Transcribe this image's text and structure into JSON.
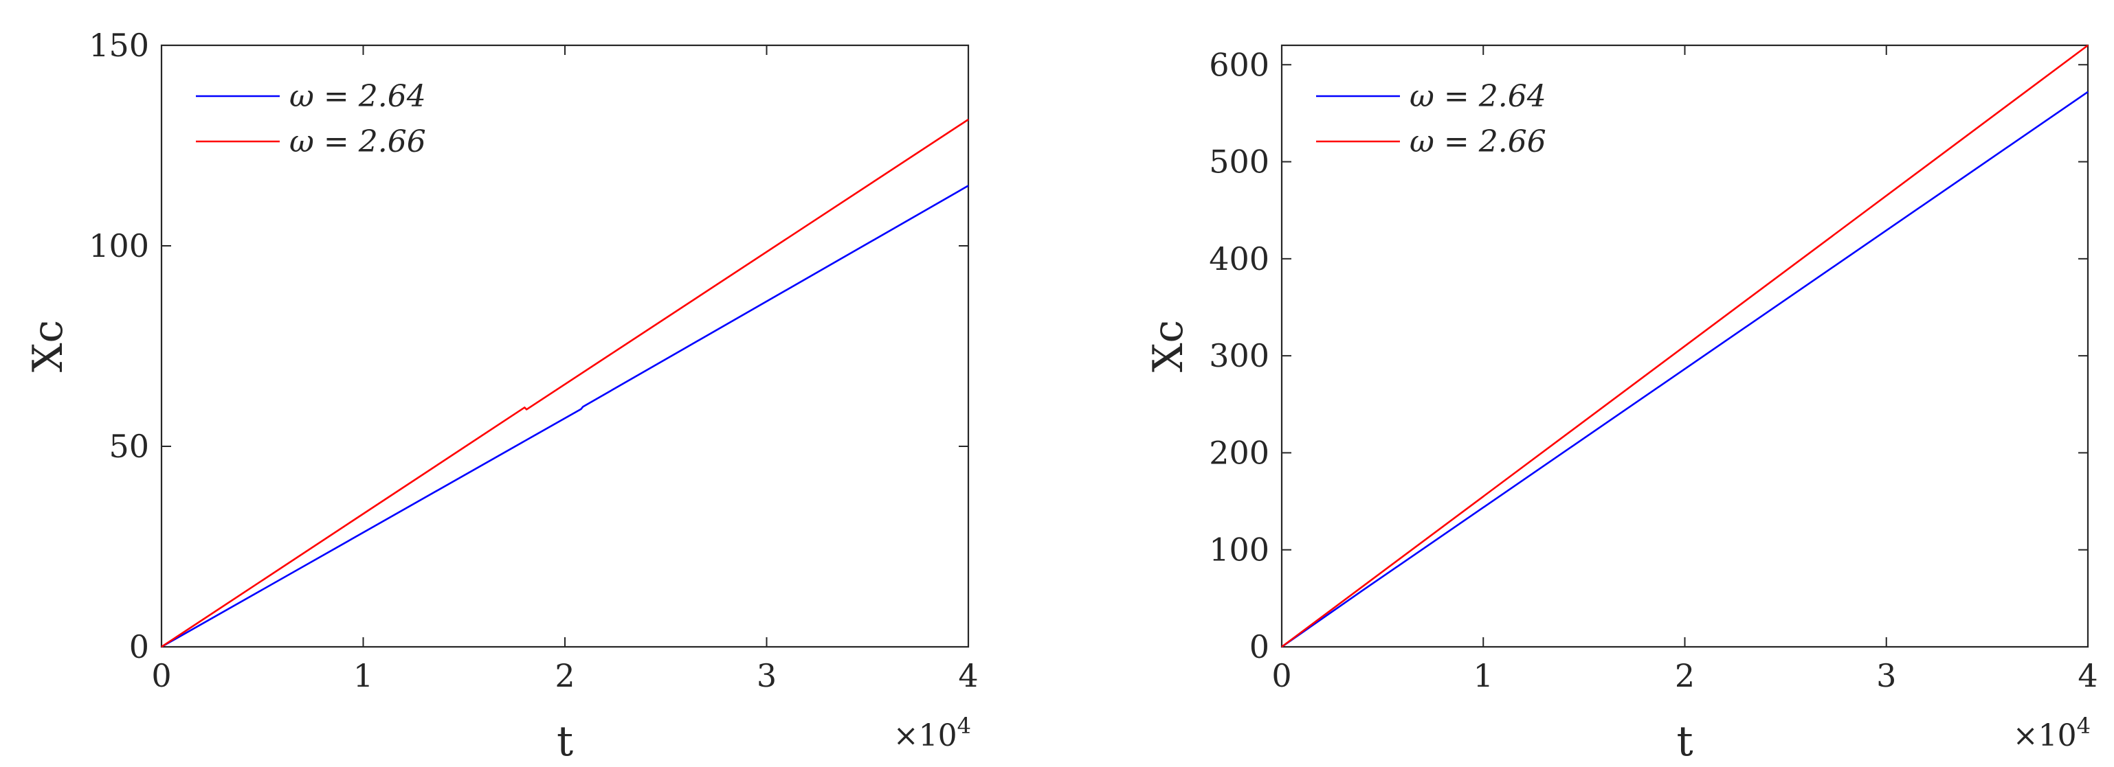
{
  "chart_data": [
    {
      "type": "line",
      "xlabel": "t",
      "ylabel": "Xc",
      "x_exponent_label": "×10",
      "x_exponent_power": "4",
      "xlim": [
        0,
        40000
      ],
      "ylim": [
        0,
        150
      ],
      "xticks": [
        0,
        10000,
        20000,
        30000,
        40000
      ],
      "xtick_labels": [
        "0",
        "1",
        "2",
        "3",
        "4"
      ],
      "yticks": [
        0,
        50,
        100,
        150
      ],
      "ytick_labels": [
        "0",
        "50",
        "100",
        "150"
      ],
      "legend_placement": "top-left",
      "grid": false,
      "series": [
        {
          "name": "ω = 2.64",
          "color": "#0000ff",
          "points": [
            [
              0,
              0
            ],
            [
              20800,
              59.3
            ],
            [
              20900,
              59.9
            ],
            [
              40000,
              115
            ]
          ]
        },
        {
          "name": "ω = 2.66",
          "color": "#ff0000",
          "points": [
            [
              0,
              0
            ],
            [
              18000,
              59.7
            ],
            [
              18100,
              59.2
            ],
            [
              40000,
              131.5
            ]
          ]
        }
      ]
    },
    {
      "type": "line",
      "xlabel": "t",
      "ylabel": "Xc",
      "x_exponent_label": "×10",
      "x_exponent_power": "4",
      "xlim": [
        0,
        40000
      ],
      "ylim": [
        0,
        620
      ],
      "xticks": [
        0,
        10000,
        20000,
        30000,
        40000
      ],
      "xtick_labels": [
        "0",
        "1",
        "2",
        "3",
        "4"
      ],
      "yticks": [
        0,
        100,
        200,
        300,
        400,
        500,
        600
      ],
      "ytick_labels": [
        "0",
        "100",
        "200",
        "300",
        "400",
        "500",
        "600"
      ],
      "legend_placement": "top-left",
      "grid": false,
      "series": [
        {
          "name": "ω = 2.64",
          "color": "#0000ff",
          "points": [
            [
              0,
              0
            ],
            [
              4000,
              58
            ],
            [
              40000,
              572
            ]
          ]
        },
        {
          "name": "ω = 2.66",
          "color": "#ff0000",
          "points": [
            [
              0,
              0
            ],
            [
              40000,
              620
            ]
          ]
        }
      ]
    }
  ]
}
